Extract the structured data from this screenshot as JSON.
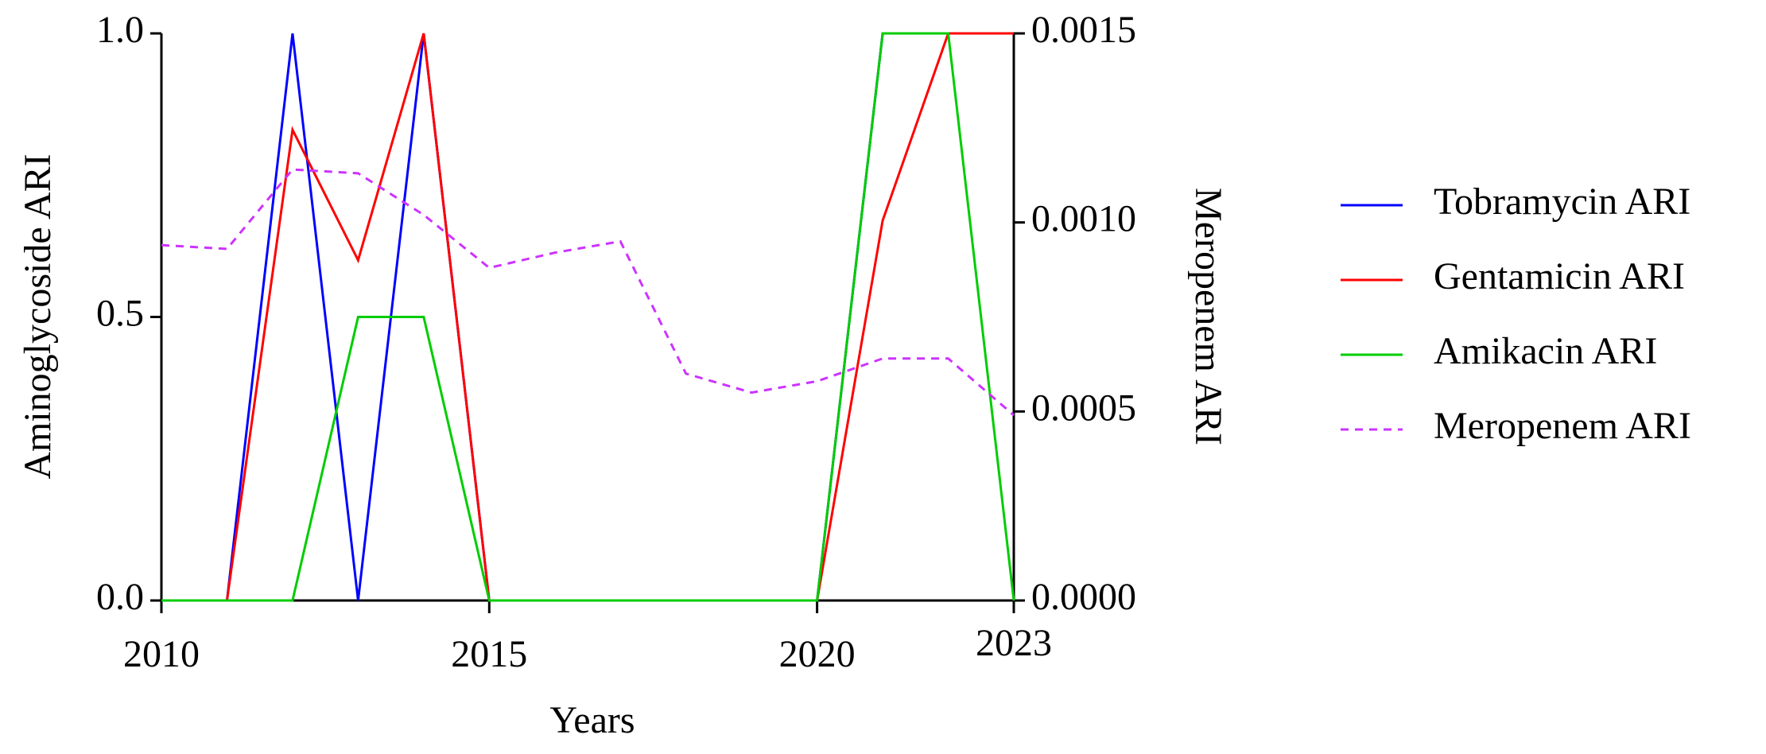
{
  "chart_data": {
    "type": "line",
    "x": [
      2010,
      2011,
      2012,
      2013,
      2014,
      2015,
      2016,
      2017,
      2018,
      2019,
      2020,
      2021,
      2022,
      2023
    ],
    "xlim": [
      2010,
      2023
    ],
    "xticks": [
      2010,
      2015,
      2020,
      2023
    ],
    "ylim": [
      0,
      1
    ],
    "yticks": [
      {
        "value": 0,
        "label": "0.0"
      },
      {
        "value": 0.5,
        "label": "0.5"
      },
      {
        "value": 1,
        "label": "1.0"
      }
    ],
    "y2lim": [
      0,
      0.0015
    ],
    "y2ticks": [
      {
        "value": 0,
        "label": "0.0000"
      },
      {
        "value": 0.0005,
        "label": "0.0005"
      },
      {
        "value": 0.001,
        "label": "0.0010"
      },
      {
        "value": 0.0015,
        "label": "0.0015"
      }
    ],
    "x_label": "Years",
    "y_label": "Aminoglycoside ARI",
    "y2_label": "Meropenem ARI",
    "legend": "right",
    "series": [
      {
        "name": "Tobramycin ARI",
        "color": "#0000ff",
        "values": [
          0,
          0,
          1,
          0,
          1,
          0,
          0,
          0,
          0,
          0,
          0,
          1,
          1,
          1
        ]
      },
      {
        "name": "Gentamicin ARI",
        "color": "#ff0000",
        "values": [
          0,
          0,
          0.83,
          0.6,
          1,
          0,
          0,
          0,
          0,
          0,
          0,
          0.67,
          1,
          1
        ]
      },
      {
        "name": "Amikacin ARI",
        "color": "#00cc00",
        "values": [
          0,
          0,
          0,
          0.5,
          0.5,
          0,
          0,
          0,
          0,
          0,
          0,
          1,
          1,
          0
        ]
      },
      {
        "name": "Meropenem ARI",
        "color": "#cc33ff",
        "dashed": true,
        "axis": "y2",
        "values": [
          0.00094,
          0.00093,
          0.00114,
          0.00113,
          0.00102,
          0.00088,
          0.00092,
          0.00095,
          0.0006,
          0.00055,
          0.00058,
          0.00064,
          0.00064,
          0.00049
        ]
      }
    ]
  }
}
